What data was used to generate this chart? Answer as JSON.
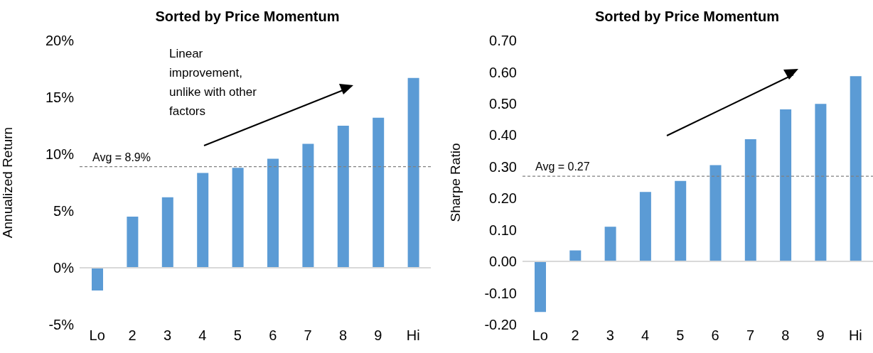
{
  "chart_data": [
    {
      "type": "bar",
      "title": "Sorted by Price Momentum",
      "ylabel": "Annualized Return",
      "categories": [
        "Lo",
        "2",
        "3",
        "4",
        "5",
        "6",
        "7",
        "8",
        "9",
        "Hi"
      ],
      "values": [
        -2.0,
        4.5,
        6.2,
        8.35,
        8.8,
        9.6,
        10.9,
        12.5,
        13.2,
        16.7
      ],
      "color": "#5b9bd5",
      "ylim": [
        -5,
        20
      ],
      "yticks": [
        {
          "value": -5,
          "label": "-5%"
        },
        {
          "value": 0,
          "label": "0%"
        },
        {
          "value": 5,
          "label": "5%"
        },
        {
          "value": 10,
          "label": "10%"
        },
        {
          "value": 15,
          "label": "15%"
        },
        {
          "value": 20,
          "label": "20%"
        }
      ],
      "grid": false,
      "ref_lines": [
        {
          "axis": "y",
          "value": 8.9,
          "label": "Avg = 8.9%",
          "color": "#808080",
          "line_style": "dashed"
        }
      ],
      "annotations": [
        "Linear improvement, unlike with other factors"
      ]
    },
    {
      "type": "bar",
      "title": "Sorted by Price Momentum",
      "ylabel": "Sharpe Ratio",
      "categories": [
        "Lo",
        "2",
        "3",
        "4",
        "5",
        "6",
        "7",
        "8",
        "9",
        "Hi"
      ],
      "values": [
        -0.16,
        0.035,
        0.11,
        0.22,
        0.255,
        0.305,
        0.387,
        0.482,
        0.499,
        0.587
      ],
      "color": "#5b9bd5",
      "ylim": [
        -0.2,
        0.7
      ],
      "yticks": [
        {
          "value": -0.2,
          "label": "-0.20"
        },
        {
          "value": -0.1,
          "label": "-0.10"
        },
        {
          "value": 0,
          "label": "0.00"
        },
        {
          "value": 0.1,
          "label": "0.10"
        },
        {
          "value": 0.2,
          "label": "0.20"
        },
        {
          "value": 0.3,
          "label": "0.30"
        },
        {
          "value": 0.4,
          "label": "0.40"
        },
        {
          "value": 0.5,
          "label": "0.50"
        },
        {
          "value": 0.6,
          "label": "0.60"
        },
        {
          "value": 0.7,
          "label": "0.70"
        }
      ],
      "grid": false,
      "ref_lines": [
        {
          "axis": "y",
          "value": 0.27,
          "label": "Avg = 0.27",
          "color": "#808080",
          "line_style": "dashed"
        }
      ]
    }
  ]
}
